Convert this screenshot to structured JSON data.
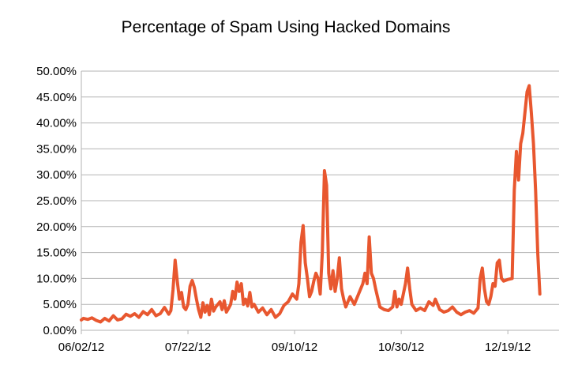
{
  "chart_data": {
    "type": "line",
    "title": "Percentage of Spam Using Hacked Domains",
    "xlabel": "",
    "ylabel": "",
    "x_start": "06/02/12",
    "x_end": "01/12/13",
    "x_ticks": [
      "06/02/12",
      "07/22/12",
      "09/10/12",
      "10/30/12",
      "12/19/12"
    ],
    "y_ticks": [
      "0.00%",
      "5.00%",
      "10.00%",
      "15.00%",
      "20.00%",
      "25.00%",
      "30.00%",
      "35.00%",
      "40.00%",
      "45.00%",
      "50.00%"
    ],
    "ylim": [
      0,
      50
    ],
    "grid": true,
    "legend": "none",
    "series": [
      {
        "color": "#e8572f",
        "points": [
          [
            "06/02/12",
            2.0
          ],
          [
            "06/03/12",
            2.3
          ],
          [
            "06/05/12",
            2.1
          ],
          [
            "06/07/12",
            2.4
          ],
          [
            "06/09/12",
            1.9
          ],
          [
            "06/11/12",
            1.6
          ],
          [
            "06/13/12",
            2.3
          ],
          [
            "06/15/12",
            1.8
          ],
          [
            "06/17/12",
            2.8
          ],
          [
            "06/19/12",
            2.0
          ],
          [
            "06/21/12",
            2.2
          ],
          [
            "06/23/12",
            3.1
          ],
          [
            "06/25/12",
            2.7
          ],
          [
            "06/27/12",
            3.2
          ],
          [
            "06/29/12",
            2.5
          ],
          [
            "07/01/12",
            3.6
          ],
          [
            "07/03/12",
            3.0
          ],
          [
            "07/05/12",
            4.0
          ],
          [
            "07/07/12",
            2.8
          ],
          [
            "07/09/12",
            3.2
          ],
          [
            "07/11/12",
            4.4
          ],
          [
            "07/13/12",
            3.1
          ],
          [
            "07/14/12",
            3.8
          ],
          [
            "07/15/12",
            7.8
          ],
          [
            "07/16/12",
            13.5
          ],
          [
            "07/17/12",
            9.5
          ],
          [
            "07/18/12",
            6.0
          ],
          [
            "07/19/12",
            7.3
          ],
          [
            "07/20/12",
            4.5
          ],
          [
            "07/21/12",
            4.0
          ],
          [
            "07/22/12",
            5.0
          ],
          [
            "07/23/12",
            8.5
          ],
          [
            "07/24/12",
            9.6
          ],
          [
            "07/25/12",
            8.3
          ],
          [
            "07/26/12",
            6.0
          ],
          [
            "07/27/12",
            4.0
          ],
          [
            "07/28/12",
            2.5
          ],
          [
            "07/29/12",
            5.3
          ],
          [
            "07/30/12",
            3.5
          ],
          [
            "07/31/12",
            4.8
          ],
          [
            "08/01/12",
            3.0
          ],
          [
            "08/02/12",
            6.0
          ],
          [
            "08/03/12",
            3.7
          ],
          [
            "08/04/12",
            4.5
          ],
          [
            "08/06/12",
            5.5
          ],
          [
            "08/07/12",
            4.0
          ],
          [
            "08/08/12",
            5.7
          ],
          [
            "08/09/12",
            3.5
          ],
          [
            "08/10/12",
            4.2
          ],
          [
            "08/11/12",
            5.0
          ],
          [
            "08/12/12",
            7.5
          ],
          [
            "08/13/12",
            6.0
          ],
          [
            "08/14/12",
            9.3
          ],
          [
            "08/15/12",
            7.5
          ],
          [
            "08/16/12",
            9.0
          ],
          [
            "08/17/12",
            5.0
          ],
          [
            "08/18/12",
            6.0
          ],
          [
            "08/19/12",
            4.7
          ],
          [
            "08/20/12",
            7.3
          ],
          [
            "08/21/12",
            4.5
          ],
          [
            "08/22/12",
            5.0
          ],
          [
            "08/24/12",
            3.5
          ],
          [
            "08/26/12",
            4.3
          ],
          [
            "08/28/12",
            3.0
          ],
          [
            "08/30/12",
            4.0
          ],
          [
            "09/01/12",
            2.5
          ],
          [
            "09/03/12",
            3.2
          ],
          [
            "09/05/12",
            4.8
          ],
          [
            "09/07/12",
            5.5
          ],
          [
            "09/09/12",
            7.0
          ],
          [
            "09/11/12",
            6.0
          ],
          [
            "09/12/12",
            9.0
          ],
          [
            "09/13/12",
            17.0
          ],
          [
            "09/14/12",
            20.2
          ],
          [
            "09/15/12",
            13.0
          ],
          [
            "09/16/12",
            10.0
          ],
          [
            "09/17/12",
            6.5
          ],
          [
            "09/18/12",
            7.5
          ],
          [
            "09/19/12",
            9.5
          ],
          [
            "09/20/12",
            11.0
          ],
          [
            "09/21/12",
            10.0
          ],
          [
            "09/22/12",
            7.0
          ],
          [
            "09/23/12",
            15.0
          ],
          [
            "09/24/12",
            30.8
          ],
          [
            "09/25/12",
            28.0
          ],
          [
            "09/26/12",
            11.0
          ],
          [
            "09/27/12",
            8.0
          ],
          [
            "09/28/12",
            11.5
          ],
          [
            "09/29/12",
            7.5
          ],
          [
            "09/30/12",
            10.0
          ],
          [
            "10/01/12",
            14.0
          ],
          [
            "10/02/12",
            8.0
          ],
          [
            "10/03/12",
            6.0
          ],
          [
            "10/04/12",
            4.5
          ],
          [
            "10/06/12",
            6.5
          ],
          [
            "10/08/12",
            5.0
          ],
          [
            "10/10/12",
            7.0
          ],
          [
            "10/12/12",
            9.0
          ],
          [
            "10/13/12",
            11.0
          ],
          [
            "10/14/12",
            9.0
          ],
          [
            "10/15/12",
            18.0
          ],
          [
            "10/16/12",
            11.0
          ],
          [
            "10/17/12",
            10.0
          ],
          [
            "10/18/12",
            8.0
          ],
          [
            "10/20/12",
            4.5
          ],
          [
            "10/22/12",
            4.0
          ],
          [
            "10/24/12",
            3.8
          ],
          [
            "10/26/12",
            4.5
          ],
          [
            "10/27/12",
            7.5
          ],
          [
            "10/28/12",
            4.5
          ],
          [
            "10/29/12",
            6.0
          ],
          [
            "10/30/12",
            5.0
          ],
          [
            "11/01/12",
            9.0
          ],
          [
            "11/02/12",
            12.0
          ],
          [
            "11/03/12",
            8.0
          ],
          [
            "11/04/12",
            5.0
          ],
          [
            "11/06/12",
            3.8
          ],
          [
            "11/08/12",
            4.3
          ],
          [
            "11/10/12",
            3.8
          ],
          [
            "11/12/12",
            5.5
          ],
          [
            "11/14/12",
            4.8
          ],
          [
            "11/15/12",
            6.0
          ],
          [
            "11/17/12",
            4.0
          ],
          [
            "11/19/12",
            3.5
          ],
          [
            "11/21/12",
            3.8
          ],
          [
            "11/23/12",
            4.5
          ],
          [
            "11/25/12",
            3.5
          ],
          [
            "11/27/12",
            3.0
          ],
          [
            "11/29/12",
            3.5
          ],
          [
            "12/01/12",
            3.8
          ],
          [
            "12/03/12",
            3.3
          ],
          [
            "12/05/12",
            4.3
          ],
          [
            "12/06/12",
            10.0
          ],
          [
            "12/07/12",
            12.0
          ],
          [
            "12/08/12",
            8.0
          ],
          [
            "12/09/12",
            5.5
          ],
          [
            "12/10/12",
            5.0
          ],
          [
            "12/11/12",
            6.5
          ],
          [
            "12/12/12",
            9.0
          ],
          [
            "12/13/12",
            8.5
          ],
          [
            "12/14/12",
            13.0
          ],
          [
            "12/15/12",
            13.5
          ],
          [
            "12/16/12",
            10.0
          ],
          [
            "12/17/12",
            9.5
          ],
          [
            "12/19/12",
            9.8
          ],
          [
            "12/21/12",
            10.0
          ],
          [
            "12/22/12",
            27.0
          ],
          [
            "12/23/12",
            34.5
          ],
          [
            "12/24/12",
            29.0
          ],
          [
            "12/25/12",
            36.0
          ],
          [
            "12/26/12",
            38.0
          ],
          [
            "12/27/12",
            42.0
          ],
          [
            "12/28/12",
            46.0
          ],
          [
            "12/29/12",
            47.2
          ],
          [
            "12/30/12",
            42.0
          ],
          [
            "12/31/12",
            36.0
          ],
          [
            "01/01/13",
            27.0
          ],
          [
            "01/02/13",
            15.0
          ],
          [
            "01/03/13",
            7.0
          ]
        ]
      }
    ]
  }
}
